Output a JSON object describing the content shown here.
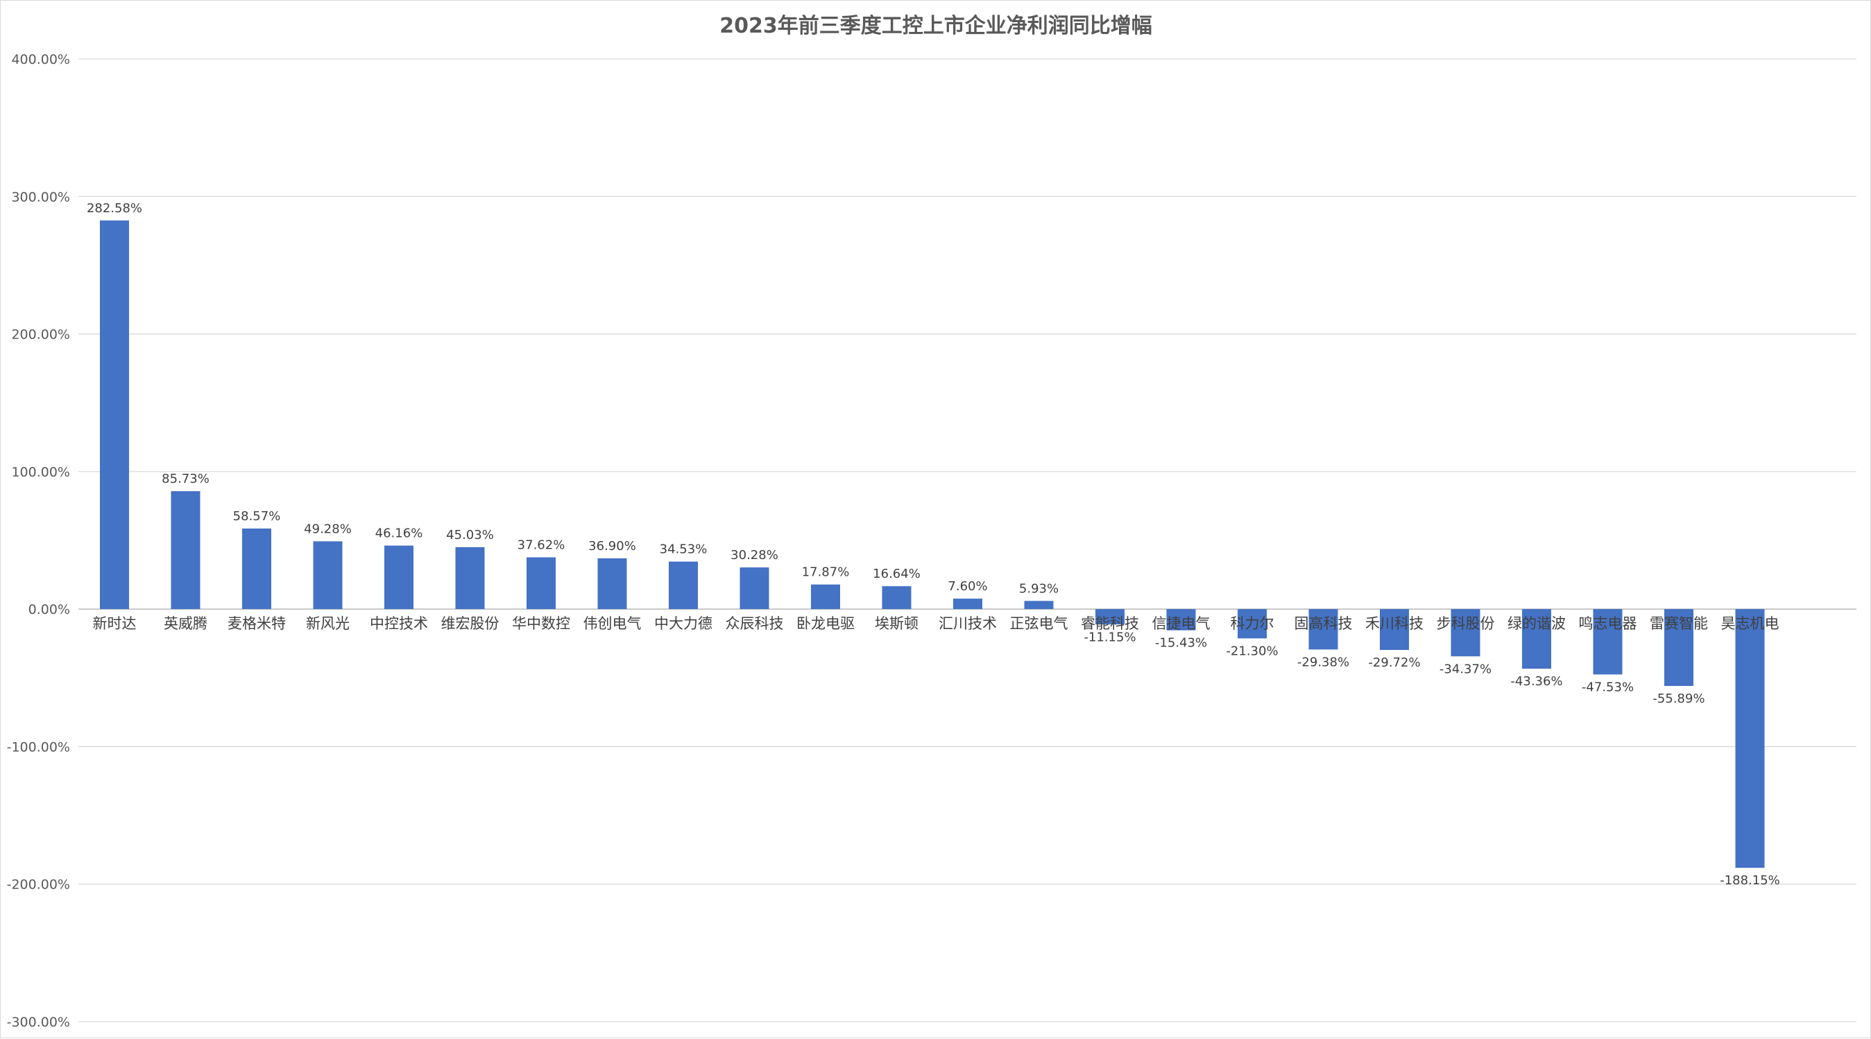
{
  "chart_data": {
    "type": "bar",
    "title": "2023年前三季度工控上市企业净利润同比增幅",
    "xlabel": "",
    "ylabel": "",
    "ylim": [
      -300,
      400
    ],
    "yticks": [
      400,
      300,
      200,
      100,
      0,
      -100,
      -200,
      -300
    ],
    "ytick_labels": [
      "400.00%",
      "300.00%",
      "200.00%",
      "100.00%",
      "0.00%",
      "-100.00%",
      "-200.00%",
      "-300.00%"
    ],
    "grid": true,
    "legend": "none",
    "bar_color": "#4472c4",
    "categories": [
      "新时达",
      "英威腾",
      "麦格米特",
      "新风光",
      "中控技术",
      "维宏股份",
      "华中数控",
      "伟创电气",
      "中大力德",
      "众辰科技",
      "卧龙电驱",
      "埃斯顿",
      "汇川技术",
      "正弦电气",
      "睿能科技",
      "信捷电气",
      "科力尔",
      "固高科技",
      "禾川科技",
      "步科股份",
      "绿的谐波",
      "鸣志电器",
      "雷赛智能",
      "昊志机电"
    ],
    "values": [
      282.58,
      85.73,
      58.57,
      49.28,
      46.16,
      45.03,
      37.62,
      36.9,
      34.53,
      30.28,
      17.87,
      16.64,
      7.6,
      5.93,
      -11.15,
      -15.43,
      -21.3,
      -29.38,
      -29.72,
      -34.37,
      -43.36,
      -47.53,
      -55.89,
      -188.15
    ],
    "data_labels": [
      "282.58%",
      "85.73%",
      "58.57%",
      "49.28%",
      "46.16%",
      "45.03%",
      "37.62%",
      "36.90%",
      "34.53%",
      "30.28%",
      "17.87%",
      "16.64%",
      "7.60%",
      "5.93%",
      "-11.15%",
      "-15.43%",
      "-21.30%",
      "-29.38%",
      "-29.72%",
      "-34.37%",
      "-43.36%",
      "-47.53%",
      "-55.89%",
      "-188.15%"
    ]
  }
}
